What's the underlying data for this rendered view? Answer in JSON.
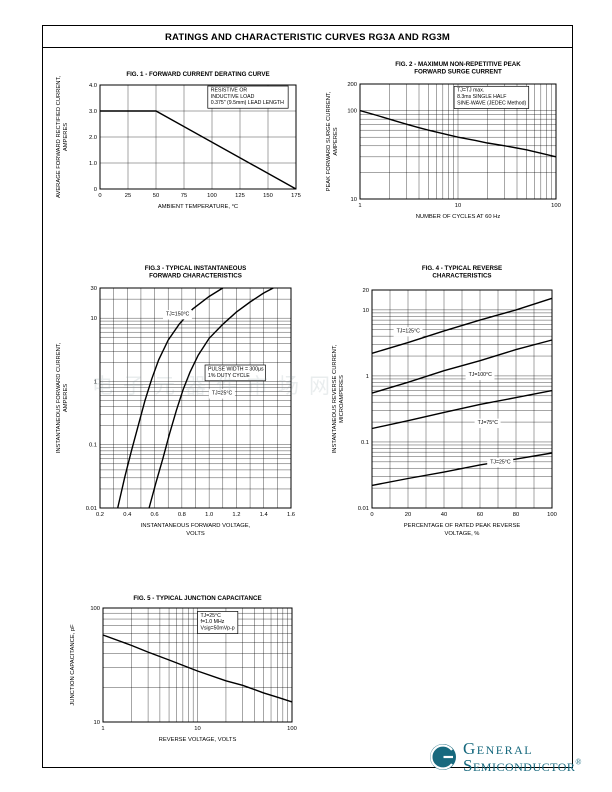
{
  "page": {
    "title": "RATINGS AND CHARACTERISTIC CURVES RG3A AND RG3M"
  },
  "watermark": {
    "text": "电子元器件市场网"
  },
  "footer": {
    "brand_line1": "General",
    "brand_line2": "Semiconductor",
    "registered": "®",
    "brand_color": "#17697e"
  },
  "chart_data": [
    {
      "id": "fig1",
      "type": "line",
      "title_lines": [
        "FIG. 1 - FORWARD CURRENT DERATING CURVE"
      ],
      "x": {
        "scale": "linear",
        "min": 0,
        "max": 175,
        "grid_step": 25,
        "ticks": [
          0,
          25,
          50,
          75,
          100,
          125,
          150,
          175
        ],
        "tick_labels": [
          "0",
          "25",
          "50",
          "75",
          "100",
          "125",
          "150",
          "175"
        ],
        "label_lines": [
          "AMBIENT TEMPERATURE, °C"
        ]
      },
      "y": {
        "scale": "linear",
        "min": 0,
        "max": 4,
        "grid_step": 1,
        "ticks": [
          0,
          1,
          2,
          3,
          4
        ],
        "tick_labels": [
          "0",
          "1.0",
          "2.0",
          "3.0",
          "4.0"
        ],
        "label_lines": [
          "AVERAGE FORWARD RECTIFIED CURRENT,",
          "AMPERES"
        ]
      },
      "series": [
        {
          "name": "derating-curve",
          "points": [
            [
              0,
              3
            ],
            [
              50,
              3
            ],
            [
              175,
              0
            ]
          ]
        }
      ],
      "annotations": [
        {
          "lines": [
            "RESISTIVE OR",
            "INDUCTIVE LOAD",
            "0.375\" (9.5mm) LEAD LENGTH"
          ],
          "fx": 0.55,
          "fy": 0.01,
          "box": true
        }
      ]
    },
    {
      "id": "fig2",
      "type": "line",
      "title_lines": [
        "FIG. 2 - MAXIMUM NON-REPETITIVE PEAK",
        "FORWARD SURGE CURRENT"
      ],
      "x": {
        "scale": "log",
        "min": 1,
        "max": 100,
        "ticks": [
          1,
          10,
          100
        ],
        "tick_labels": [
          "1",
          "10",
          "100"
        ],
        "label_lines": [
          "NUMBER OF CYCLES AT 60 Hz"
        ]
      },
      "y": {
        "scale": "log",
        "min": 10,
        "max": 200,
        "ticks": [
          200,
          100,
          10
        ],
        "tick_labels": [
          "200",
          "100",
          "10"
        ],
        "label_lines": [
          "PEAK FORWARD SURGE CURRENT,",
          "AMPERES"
        ]
      },
      "series": [
        {
          "name": "surge-current",
          "points": [
            [
              1,
              100
            ],
            [
              1.5,
              88
            ],
            [
              2,
              80
            ],
            [
              3,
              70
            ],
            [
              4,
              64
            ],
            [
              5,
              60
            ],
            [
              7,
              55
            ],
            [
              10,
              50
            ],
            [
              15,
              46
            ],
            [
              20,
              43
            ],
            [
              30,
              40
            ],
            [
              50,
              36
            ],
            [
              70,
              33
            ],
            [
              100,
              30
            ]
          ]
        }
      ],
      "annotations": [
        {
          "lines": [
            "TJ=TJ max.",
            "8.3ms SINGLE HALF",
            "SINE-WAVE (JEDEC Method)"
          ],
          "fx": 0.48,
          "fy": 0.02,
          "box": true
        }
      ]
    },
    {
      "id": "fig3",
      "type": "line",
      "title_lines": [
        "FIG.3 - TYPICAL INSTANTANEOUS",
        "FORWARD CHARACTERISTICS"
      ],
      "x": {
        "scale": "linear",
        "min": 0.2,
        "max": 1.6,
        "grid_step": 0.1,
        "ticks": [
          0.2,
          0.4,
          0.6,
          0.8,
          1.0,
          1.2,
          1.4,
          1.6
        ],
        "tick_labels": [
          "0.2",
          "0.4",
          "0.6",
          "0.8",
          "1.0",
          "1.2",
          "1.4",
          "1.6"
        ],
        "label_lines": [
          "INSTANTANEOUS FORWARD VOLTAGE,",
          "VOLTS"
        ]
      },
      "y": {
        "scale": "log",
        "min": 0.01,
        "max": 30,
        "ticks": [
          30,
          10,
          1,
          0.1,
          0.01
        ],
        "tick_labels": [
          "30",
          "10",
          "1",
          "0.1",
          "0.01"
        ],
        "label_lines": [
          "INSTANTANEOUS FORWARD CURRENT,",
          "AMPERES"
        ]
      },
      "series": [
        {
          "name": "tj-150c",
          "points": [
            [
              0.33,
              0.01
            ],
            [
              0.38,
              0.03
            ],
            [
              0.43,
              0.08
            ],
            [
              0.48,
              0.2
            ],
            [
              0.53,
              0.5
            ],
            [
              0.58,
              1.1
            ],
            [
              0.63,
              2.2
            ],
            [
              0.7,
              4.5
            ],
            [
              0.78,
              8
            ],
            [
              0.88,
              14
            ],
            [
              1.0,
              22
            ],
            [
              1.1,
              30
            ]
          ]
        },
        {
          "name": "tj-25c",
          "points": [
            [
              0.56,
              0.01
            ],
            [
              0.61,
              0.025
            ],
            [
              0.66,
              0.06
            ],
            [
              0.71,
              0.15
            ],
            [
              0.76,
              0.35
            ],
            [
              0.81,
              0.75
            ],
            [
              0.86,
              1.4
            ],
            [
              0.92,
              2.6
            ],
            [
              1.0,
              4.8
            ],
            [
              1.1,
              8
            ],
            [
              1.2,
              12.5
            ],
            [
              1.3,
              18
            ],
            [
              1.4,
              25
            ],
            [
              1.47,
              30
            ]
          ]
        }
      ],
      "annotations": [
        {
          "lines": [
            "TJ=150°C"
          ],
          "fx": 0.33,
          "fy": 0.1,
          "box": false
        },
        {
          "lines": [
            "PULSE WIDTH = 300μs",
            "1% DUTY CYCLE"
          ],
          "fx": 0.55,
          "fy": 0.35,
          "box": true
        },
        {
          "lines": [
            "TJ=25°C"
          ],
          "fx": 0.57,
          "fy": 0.46,
          "box": false
        }
      ]
    },
    {
      "id": "fig4",
      "type": "line",
      "title_lines": [
        "FIG. 4 - TYPICAL REVERSE",
        "CHARACTERISTICS"
      ],
      "x": {
        "scale": "linear",
        "min": 0,
        "max": 100,
        "grid_step": 10,
        "ticks": [
          0,
          20,
          40,
          60,
          80,
          100
        ],
        "tick_labels": [
          "0",
          "20",
          "40",
          "60",
          "80",
          "100"
        ],
        "label_lines": [
          "PERCENTAGE OF RATED PEAK REVERSE",
          "VOLTAGE, %"
        ]
      },
      "y": {
        "scale": "log",
        "min": 0.01,
        "max": 20,
        "ticks": [
          20,
          10,
          1,
          0.1,
          0.01
        ],
        "tick_labels": [
          "20",
          "10",
          "1",
          "0.1",
          "0.01"
        ],
        "label_lines": [
          "INSTANTANEOUS REVERSE CURRENT,",
          "MICROAMPERES"
        ]
      },
      "series": [
        {
          "name": "tj-125c",
          "points": [
            [
              0,
              2.2
            ],
            [
              20,
              3.2
            ],
            [
              40,
              4.8
            ],
            [
              60,
              7
            ],
            [
              80,
              10
            ],
            [
              100,
              15
            ]
          ]
        },
        {
          "name": "tj-100c",
          "points": [
            [
              0,
              0.55
            ],
            [
              20,
              0.8
            ],
            [
              40,
              1.2
            ],
            [
              60,
              1.7
            ],
            [
              80,
              2.5
            ],
            [
              100,
              3.5
            ]
          ]
        },
        {
          "name": "tj-75c",
          "points": [
            [
              0,
              0.16
            ],
            [
              20,
              0.21
            ],
            [
              40,
              0.28
            ],
            [
              60,
              0.37
            ],
            [
              80,
              0.47
            ],
            [
              100,
              0.6
            ]
          ]
        },
        {
          "name": "tj-25c",
          "points": [
            [
              0,
              0.022
            ],
            [
              20,
              0.028
            ],
            [
              40,
              0.035
            ],
            [
              60,
              0.045
            ],
            [
              80,
              0.055
            ],
            [
              100,
              0.068
            ]
          ]
        }
      ],
      "annotations": [
        {
          "lines": [
            "TJ=125°C"
          ],
          "fx": 0.12,
          "fy": 0.17,
          "box": false
        },
        {
          "lines": [
            "TJ=100°C"
          ],
          "fx": 0.52,
          "fy": 0.37,
          "box": false
        },
        {
          "lines": [
            "TJ=75°C"
          ],
          "fx": 0.57,
          "fy": 0.59,
          "box": false
        },
        {
          "lines": [
            "TJ=25°C"
          ],
          "fx": 0.64,
          "fy": 0.77,
          "box": false
        }
      ]
    },
    {
      "id": "fig5",
      "type": "line",
      "title_lines": [
        "FIG. 5 - TYPICAL JUNCTION CAPACITANCE"
      ],
      "x": {
        "scale": "log",
        "min": 1,
        "max": 100,
        "ticks": [
          1,
          10,
          100
        ],
        "tick_labels": [
          "1",
          "10",
          "100"
        ],
        "label_lines": [
          "REVERSE VOLTAGE, VOLTS"
        ]
      },
      "y": {
        "scale": "log",
        "min": 10,
        "max": 100,
        "ticks": [
          100,
          10
        ],
        "tick_labels": [
          "100",
          "10"
        ],
        "label_lines": [
          "JUNCTION CAPACITANCE, pF"
        ]
      },
      "series": [
        {
          "name": "junction-capacitance",
          "points": [
            [
              1,
              58
            ],
            [
              2,
              47
            ],
            [
              3,
              41
            ],
            [
              5,
              35
            ],
            [
              10,
              28
            ],
            [
              20,
              23
            ],
            [
              30,
              21
            ],
            [
              50,
              18
            ],
            [
              70,
              16.5
            ],
            [
              100,
              15
            ]
          ]
        }
      ],
      "annotations": [
        {
          "lines": [
            "TJ=25°C",
            "f=1.0 MHz",
            "Vsig=50mVp-p"
          ],
          "fx": 0.5,
          "fy": 0.03,
          "box": true
        }
      ]
    }
  ]
}
